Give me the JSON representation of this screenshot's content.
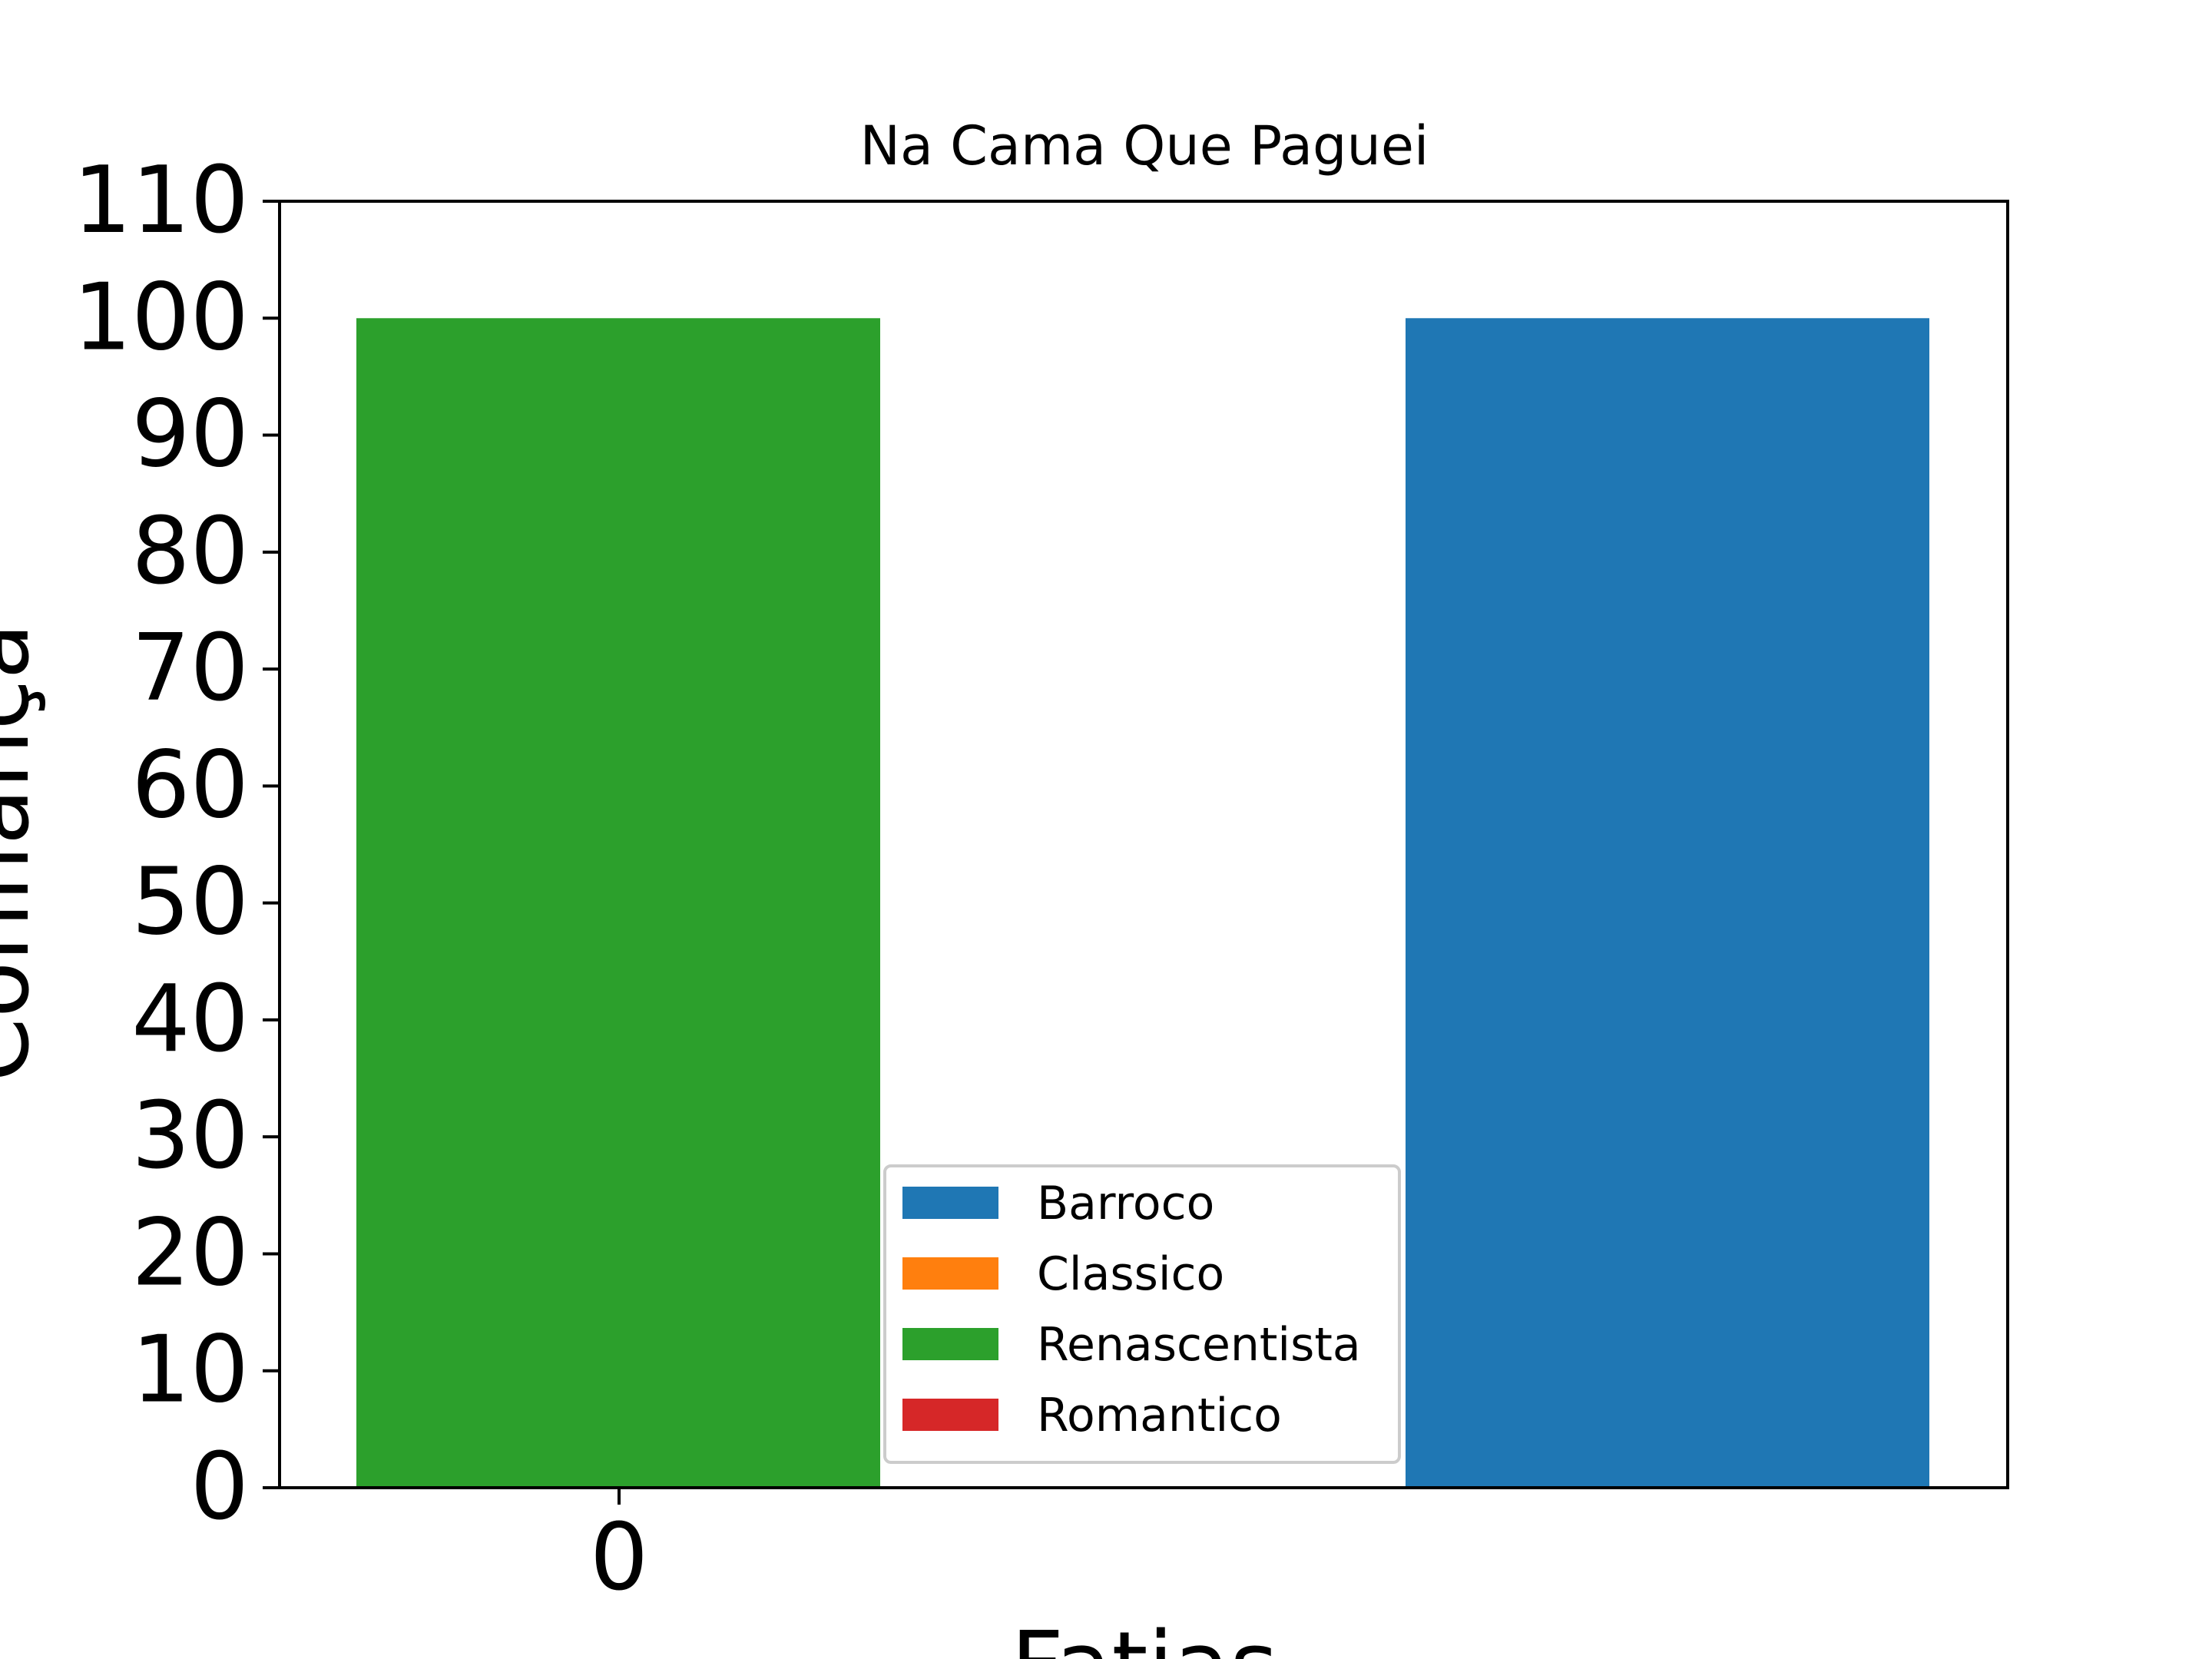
{
  "chart_data": {
    "type": "bar",
    "title": "Na Cama Que Paguei",
    "xlabel": "Fatias",
    "ylabel": "Confiança",
    "ylim": [
      0,
      110
    ],
    "yticks": [
      0,
      10,
      20,
      30,
      40,
      50,
      60,
      70,
      80,
      90,
      100,
      110
    ],
    "xtick_labels": [
      "0"
    ],
    "bars": [
      {
        "series": "Renascentista",
        "value": 100
      },
      {
        "series": "Barroco",
        "value": 100
      }
    ],
    "legend": {
      "placement": "lower-center",
      "entries": [
        {
          "name": "Barroco",
          "color": "#1f77b4"
        },
        {
          "name": "Classico",
          "color": "#ff7f0e"
        },
        {
          "name": "Renascentista",
          "color": "#2ca02c"
        },
        {
          "name": "Romantico",
          "color": "#d62728"
        }
      ]
    },
    "grid": false
  }
}
